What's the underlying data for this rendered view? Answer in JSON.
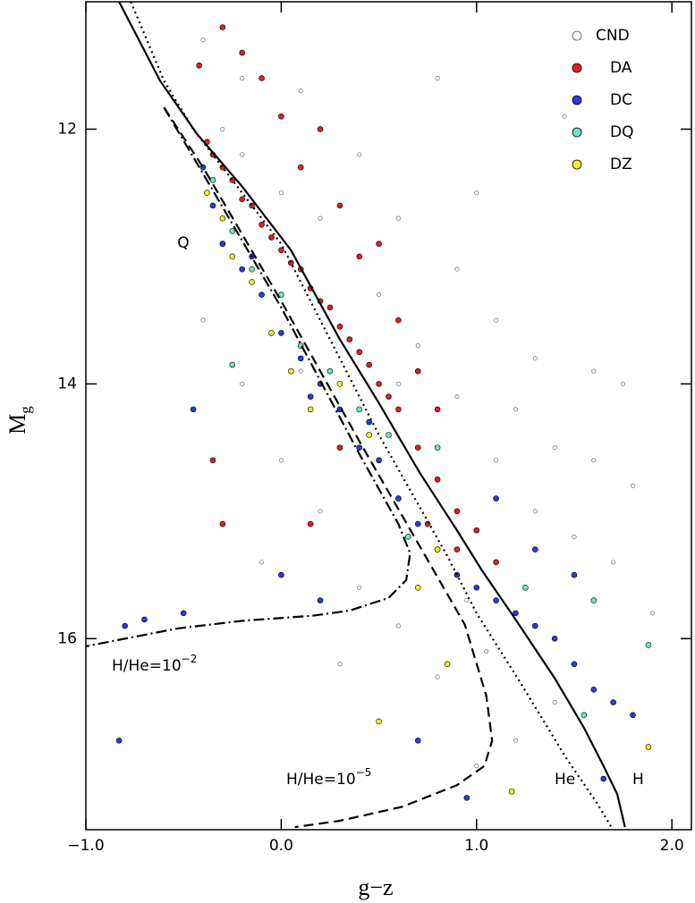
{
  "chart_data": {
    "type": "scatter",
    "xlabel": "g−z",
    "ylabel": "M",
    "ylabel_sub": "g",
    "xlim": [
      -1.0,
      2.1
    ],
    "ylim": [
      17.5,
      11.0
    ],
    "xticks": [
      {
        "value": -1,
        "label": "−1.0"
      },
      {
        "value": 0,
        "label": "0.0"
      },
      {
        "value": 1,
        "label": "1.0"
      },
      {
        "value": 2,
        "label": "2.0"
      }
    ],
    "yticks": [
      12,
      14,
      16
    ],
    "legend": "upper right",
    "annotations": [
      "Q"
    ],
    "series": [
      {
        "name": "CND",
        "color": "#ffffff",
        "x": [
          -0.4,
          -0.2,
          0.1,
          0.4,
          0.8,
          1.0,
          0.6,
          0.9,
          1.1,
          1.3,
          1.2,
          1.4,
          1.6,
          1.8,
          1.5,
          1.7,
          1.9,
          1.4,
          1.2,
          1.0,
          0.8,
          0.6,
          0.4,
          0.2,
          0.0,
          -0.2,
          -0.4,
          -0.3,
          0.0,
          0.2,
          0.5,
          0.7,
          0.9,
          1.1,
          1.3,
          0.95,
          1.05,
          0.3,
          -0.1,
          1.6,
          1.45,
          1.75,
          -0.2,
          0.1,
          0.6
        ],
        "y": [
          11.3,
          11.6,
          11.7,
          12.2,
          11.6,
          12.5,
          12.7,
          13.1,
          13.5,
          13.8,
          14.2,
          14.5,
          14.6,
          14.8,
          15.2,
          15.4,
          15.8,
          16.5,
          16.8,
          17.0,
          16.3,
          15.9,
          15.6,
          15.0,
          14.6,
          14.0,
          13.5,
          12.0,
          12.5,
          12.7,
          13.3,
          13.7,
          14.1,
          14.6,
          15.0,
          15.7,
          16.1,
          16.2,
          15.4,
          13.9,
          11.9,
          14.0,
          12.2,
          13.9,
          14.0
        ]
      },
      {
        "name": "DA",
        "color": "#e02020",
        "x": [
          -0.38,
          -0.35,
          -0.3,
          -0.25,
          -0.2,
          -0.15,
          -0.1,
          -0.05,
          0.0,
          0.05,
          0.1,
          0.15,
          0.2,
          0.25,
          0.3,
          0.35,
          0.4,
          0.45,
          0.5,
          0.55,
          0.6,
          0.7,
          0.8,
          0.9,
          1.0,
          0.9,
          1.1,
          -0.2,
          -0.1,
          0.0,
          0.1,
          0.3,
          0.4,
          0.6,
          0.7,
          0.8,
          -0.3,
          -0.42,
          0.2,
          0.5,
          -0.3,
          -0.35,
          0.15,
          -0.3,
          0.3,
          0.75,
          0.6
        ],
        "y": [
          12.1,
          12.2,
          12.3,
          12.4,
          12.55,
          12.6,
          12.75,
          12.85,
          12.95,
          13.05,
          13.1,
          13.25,
          13.35,
          13.4,
          13.55,
          13.65,
          13.75,
          13.85,
          14.0,
          14.1,
          14.2,
          14.5,
          14.75,
          15.0,
          15.15,
          15.3,
          15.4,
          11.4,
          11.6,
          11.9,
          12.3,
          12.6,
          13.0,
          13.5,
          13.9,
          14.2,
          11.2,
          11.5,
          12.0,
          12.9,
          12.9,
          14.6,
          15.1,
          15.1,
          14.5,
          15.1,
          14.9
        ]
      },
      {
        "name": "DC",
        "color": "#2a3ae0",
        "x": [
          -0.4,
          -0.35,
          -0.3,
          -0.2,
          -0.1,
          0.0,
          0.1,
          0.2,
          0.3,
          0.4,
          0.5,
          0.6,
          0.7,
          0.8,
          0.9,
          1.0,
          1.1,
          1.2,
          1.3,
          1.4,
          1.5,
          1.6,
          1.7,
          1.5,
          1.3,
          1.8,
          -0.8,
          -0.7,
          -0.5,
          -0.83,
          0.0,
          0.2,
          0.7,
          0.95,
          1.65,
          0.15,
          -0.15,
          0.45,
          -0.45,
          1.1
        ],
        "y": [
          12.3,
          12.6,
          12.9,
          13.1,
          13.3,
          13.6,
          13.8,
          14.0,
          14.2,
          14.5,
          14.6,
          14.9,
          15.1,
          15.3,
          15.5,
          15.6,
          15.7,
          15.8,
          15.9,
          16.0,
          16.2,
          16.4,
          16.5,
          15.5,
          15.3,
          16.6,
          15.9,
          15.85,
          15.8,
          16.8,
          15.5,
          15.7,
          16.8,
          17.25,
          17.1,
          14.1,
          13.0,
          14.3,
          14.2,
          14.9
        ]
      },
      {
        "name": "DQ",
        "color": "#66e6c8",
        "x": [
          -0.35,
          -0.25,
          -0.15,
          0.0,
          0.1,
          0.25,
          0.4,
          0.55,
          0.8,
          0.65,
          1.25,
          1.6,
          1.88,
          -0.25,
          1.55
        ],
        "y": [
          12.4,
          12.8,
          13.1,
          13.3,
          13.7,
          13.9,
          14.2,
          14.4,
          14.5,
          15.2,
          15.6,
          15.7,
          16.05,
          13.85,
          16.6
        ]
      },
      {
        "name": "DZ",
        "color": "#f2ee22",
        "x": [
          -0.38,
          -0.3,
          -0.25,
          -0.15,
          -0.05,
          0.05,
          0.15,
          0.3,
          0.45,
          0.7,
          0.85,
          0.5,
          1.18,
          1.88,
          0.8
        ],
        "y": [
          12.5,
          12.7,
          13.0,
          13.2,
          13.6,
          13.9,
          14.2,
          14.0,
          14.4,
          15.6,
          16.2,
          16.65,
          17.2,
          16.85,
          15.3
        ]
      }
    ],
    "curves": [
      {
        "label": "H",
        "dash": "solid",
        "x": [
          -0.83,
          -0.62,
          -0.43,
          -0.2,
          0.05,
          0.3,
          0.5,
          0.71,
          0.9,
          1.03,
          1.2,
          1.4,
          1.55,
          1.65,
          1.72,
          1.76
        ],
        "y": [
          11.0,
          11.62,
          12.04,
          12.45,
          12.95,
          13.65,
          14.15,
          14.7,
          15.15,
          15.47,
          15.85,
          16.31,
          16.7,
          17.0,
          17.22,
          17.48
        ]
      },
      {
        "label": "He",
        "dash": "dotted",
        "x": [
          -0.77,
          -0.6,
          -0.45,
          0.0,
          0.5,
          0.85,
          1.0,
          1.21,
          1.46,
          1.62,
          1.69
        ],
        "y": [
          11.0,
          11.62,
          12.0,
          12.9,
          14.4,
          15.35,
          15.8,
          16.31,
          16.94,
          17.3,
          17.48
        ]
      },
      {
        "label": "H/He=10",
        "label_sup": "−2",
        "dash": "dashdot",
        "x": [
          -0.6,
          -0.4,
          0.0,
          0.4,
          0.6,
          0.66,
          0.64,
          0.55,
          0.35,
          0.16,
          -0.2,
          -0.53,
          -1.0
        ],
        "y": [
          11.83,
          12.35,
          13.4,
          14.55,
          15.1,
          15.33,
          15.54,
          15.68,
          15.78,
          15.82,
          15.86,
          15.92,
          16.06
        ]
      },
      {
        "label": "H/He=10",
        "label_sup": "−5",
        "dash": "dashed",
        "x": [
          -0.6,
          -0.4,
          0.0,
          0.4,
          0.7,
          0.94,
          1.05,
          1.08,
          1.04,
          0.9,
          0.62,
          0.3,
          0.07
        ],
        "y": [
          11.83,
          12.3,
          13.35,
          14.45,
          15.25,
          15.89,
          16.45,
          16.8,
          17.0,
          17.15,
          17.32,
          17.43,
          17.48
        ]
      }
    ]
  }
}
